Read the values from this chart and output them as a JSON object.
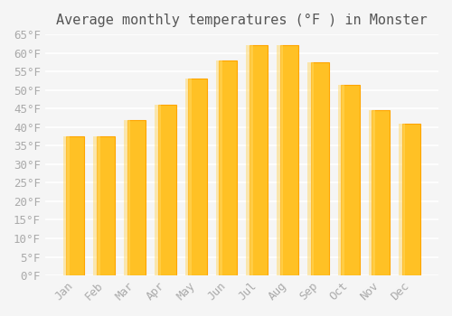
{
  "title": "Average monthly temperatures (°F ) in Monster",
  "months": [
    "Jan",
    "Feb",
    "Mar",
    "Apr",
    "May",
    "Jun",
    "Jul",
    "Aug",
    "Sep",
    "Oct",
    "Nov",
    "Dec"
  ],
  "values": [
    37.5,
    37.5,
    42,
    46,
    53,
    58,
    62,
    62,
    57.5,
    51.5,
    44.5,
    41
  ],
  "bar_color_face": "#FFC125",
  "bar_color_edge": "#FFA500",
  "background_color": "#f5f5f5",
  "grid_color": "#ffffff",
  "text_color": "#aaaaaa",
  "title_color": "#555555",
  "ylim": [
    0,
    65
  ],
  "yticks": [
    0,
    5,
    10,
    15,
    20,
    25,
    30,
    35,
    40,
    45,
    50,
    55,
    60,
    65
  ],
  "title_fontsize": 11,
  "tick_fontsize": 9
}
